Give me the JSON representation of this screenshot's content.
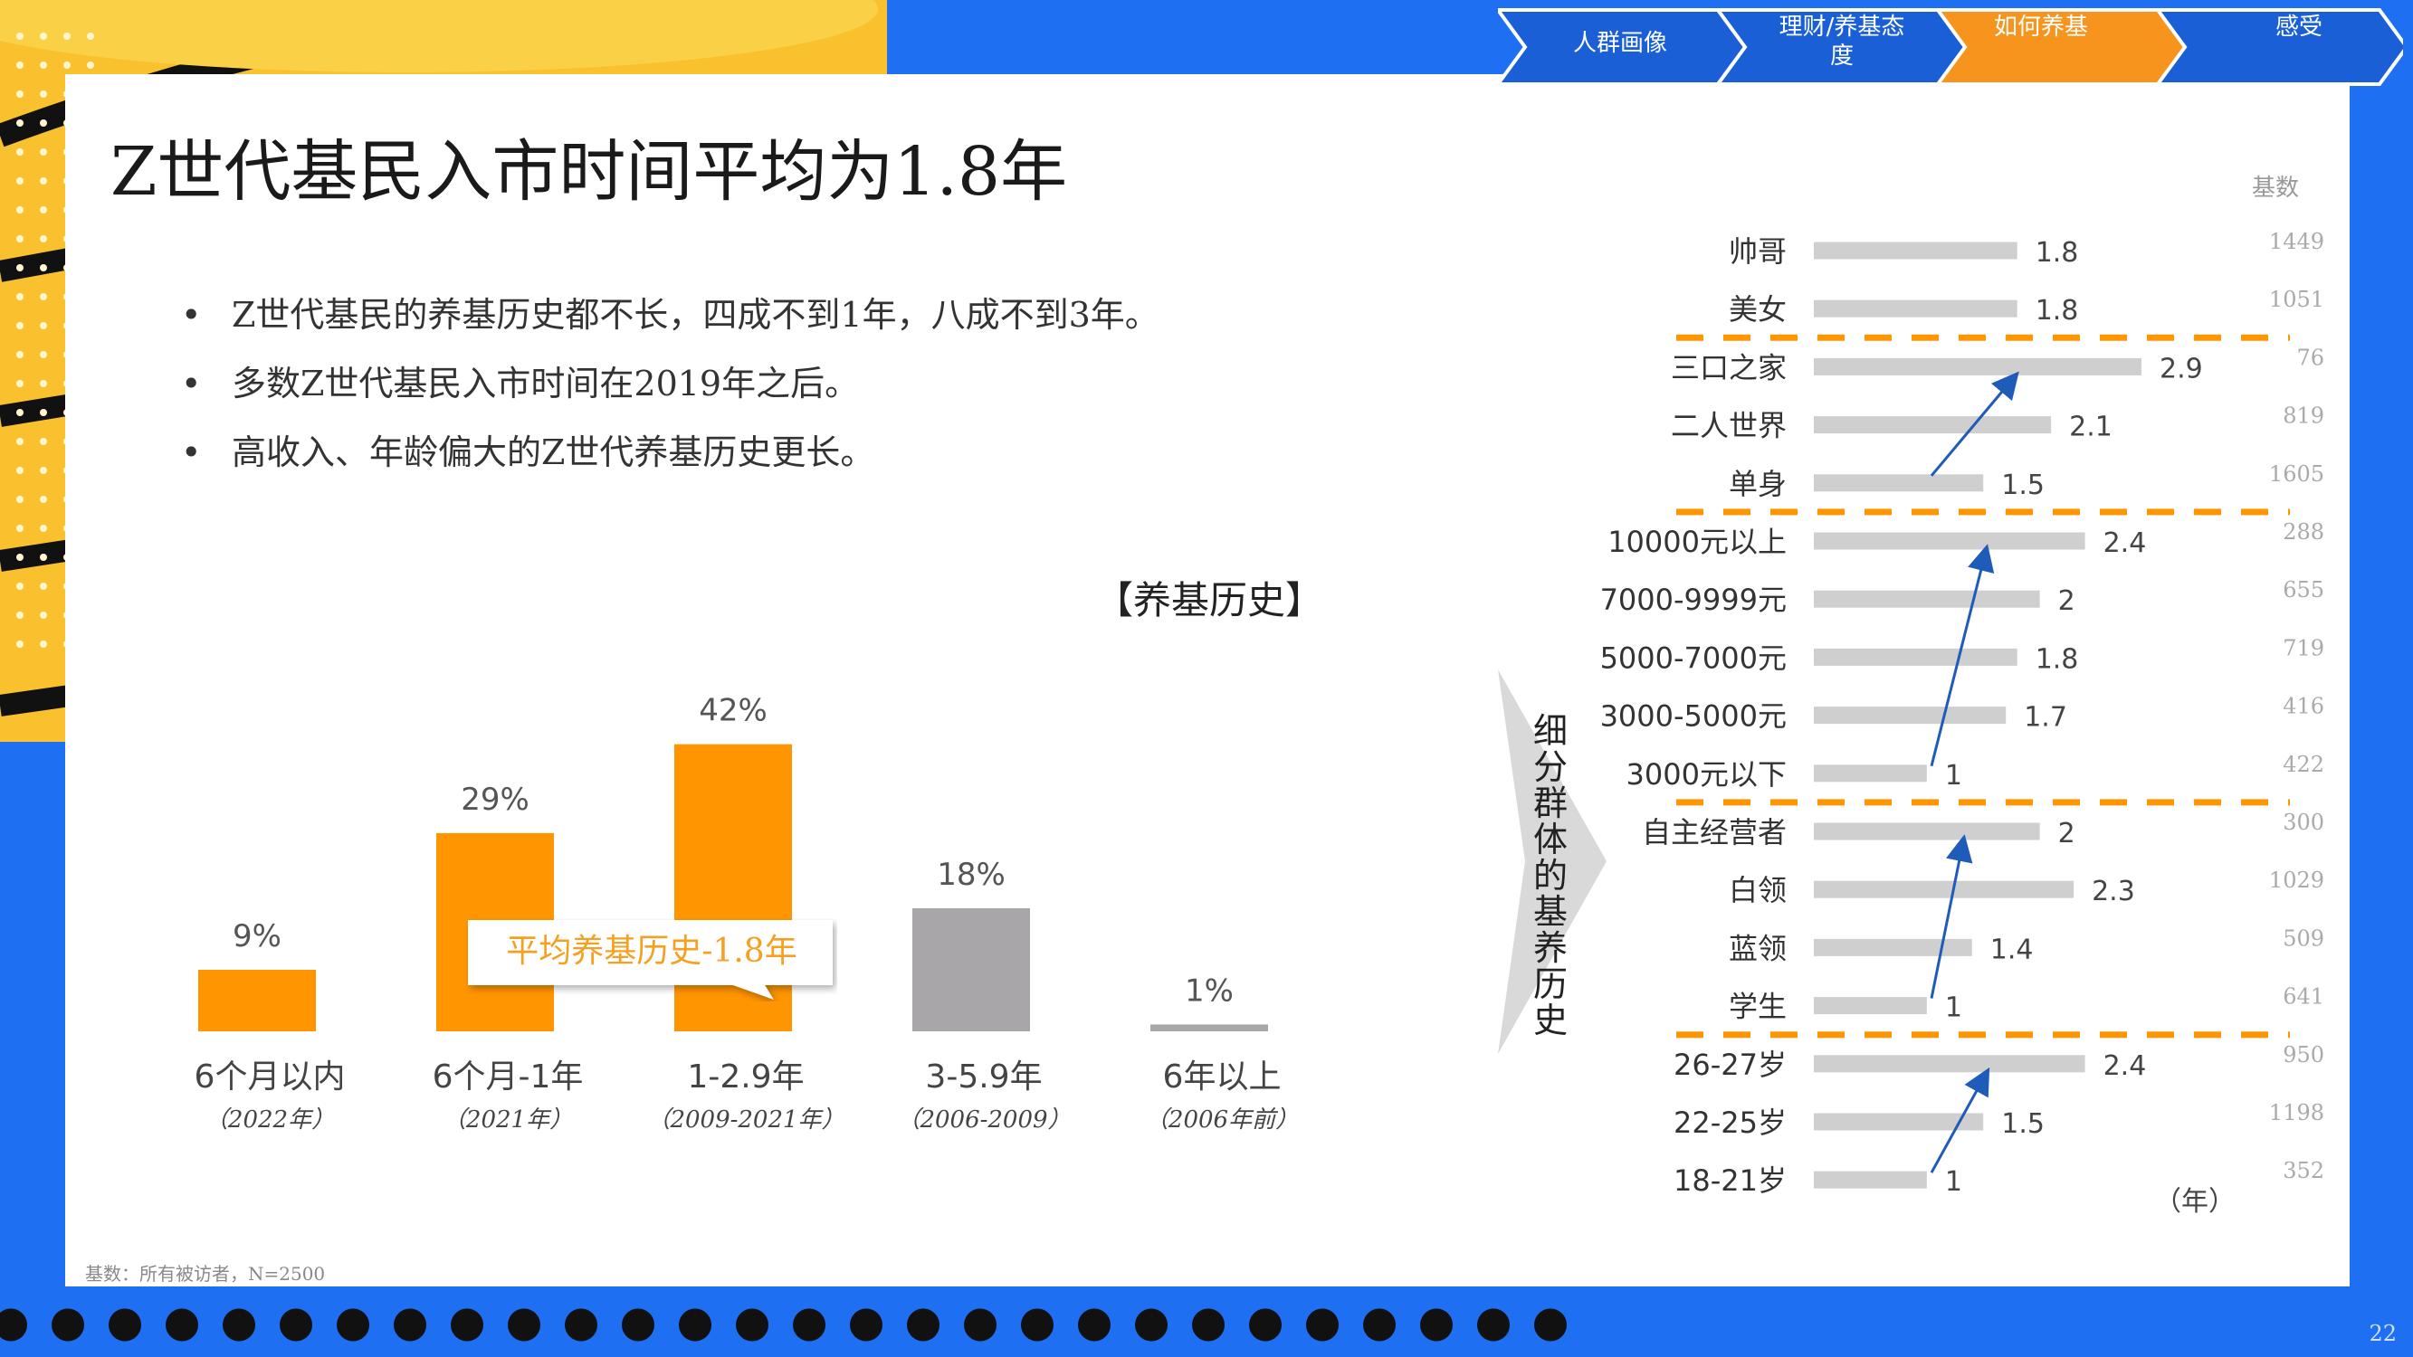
{
  "title": "Z世代基民入市时间平均为1.8年",
  "bullets": [
    "Z世代基民的养基历史都不长，四成不到1年，八成不到3年。",
    "多数Z世代基民入市时间在2019年之后。",
    "高收入、年龄偏大的Z世代养基历史更长。"
  ],
  "bullet_symbol": "•",
  "nav": {
    "items": [
      "人群画像",
      "理财/养基态度",
      "如何养基",
      "感受"
    ],
    "active_index": 2,
    "colors": {
      "default": "#1a5fd6",
      "active": "#f7941d"
    }
  },
  "callout": {
    "label": "平均养基历史-1.8年"
  },
  "segment_label": "细分群体的基养历史",
  "footnote": "基数：所有被访者，N=2500",
  "page_number": "22",
  "colors": {
    "background": "#1f6ff2",
    "orange": "#ff9500",
    "gray_bar": "#a8a6a8",
    "light_bar": "#cfcfcf",
    "arrow": "#1f5bb8",
    "yellow": "#f9c12e"
  },
  "chart_data": [
    {
      "type": "bar",
      "title": "【养基历史】",
      "categories": [
        "6个月以内",
        "6个月-1年",
        "1-2.9年",
        "3-5.9年",
        "6年以上"
      ],
      "sub_labels": [
        "（2022年）",
        "（2021年）",
        "（2009-2021年）",
        "（2006-2009）",
        "（2006年前）"
      ],
      "values": [
        9,
        29,
        42,
        18,
        1
      ],
      "value_labels": [
        "9%",
        "29%",
        "42%",
        "18%",
        "1%"
      ],
      "bar_colors": [
        "#ff9500",
        "#ff9500",
        "#ff9500",
        "#a8a6a8",
        "#a8a6a8"
      ],
      "ylim": [
        0,
        45
      ],
      "grid": false
    },
    {
      "type": "bar",
      "orientation": "horizontal",
      "unit_label": "（年）",
      "base_header": "基数",
      "categories": [
        "帅哥",
        "美女",
        "三口之家",
        "二人世界",
        "单身",
        "10000元以上",
        "7000-9999元",
        "5000-7000元",
        "3000-5000元",
        "3000元以下",
        "自主经营者",
        "白领",
        "蓝领",
        "学生",
        "26-27岁",
        "22-25岁",
        "18-21岁"
      ],
      "values": [
        1.8,
        1.8,
        2.9,
        2.1,
        1.5,
        2.4,
        2,
        1.8,
        1.7,
        1,
        2,
        2.3,
        1.4,
        1,
        2.4,
        1.5,
        1
      ],
      "value_labels": [
        "1.8",
        "1.8",
        "2.9",
        "2.1",
        "1.5",
        "2.4",
        "2",
        "1.8",
        "1.7",
        "1",
        "2",
        "2.3",
        "1.4",
        "1",
        "2.4",
        "1.5",
        "1"
      ],
      "bases": [
        "1449",
        "1051",
        "76",
        "819",
        "1605",
        "288",
        "655",
        "719",
        "416",
        "422",
        "300",
        "1029",
        "509",
        "641",
        "950",
        "1198",
        "352"
      ],
      "group_breaks_after": [
        1,
        4,
        9,
        13
      ],
      "trend_arrows": [
        {
          "from": 4,
          "to": 2
        },
        {
          "from": 9,
          "to": 5
        },
        {
          "from": 13,
          "to": 10
        },
        {
          "from": 16,
          "to": 14
        }
      ],
      "xlim": [
        0,
        3.5
      ]
    }
  ]
}
